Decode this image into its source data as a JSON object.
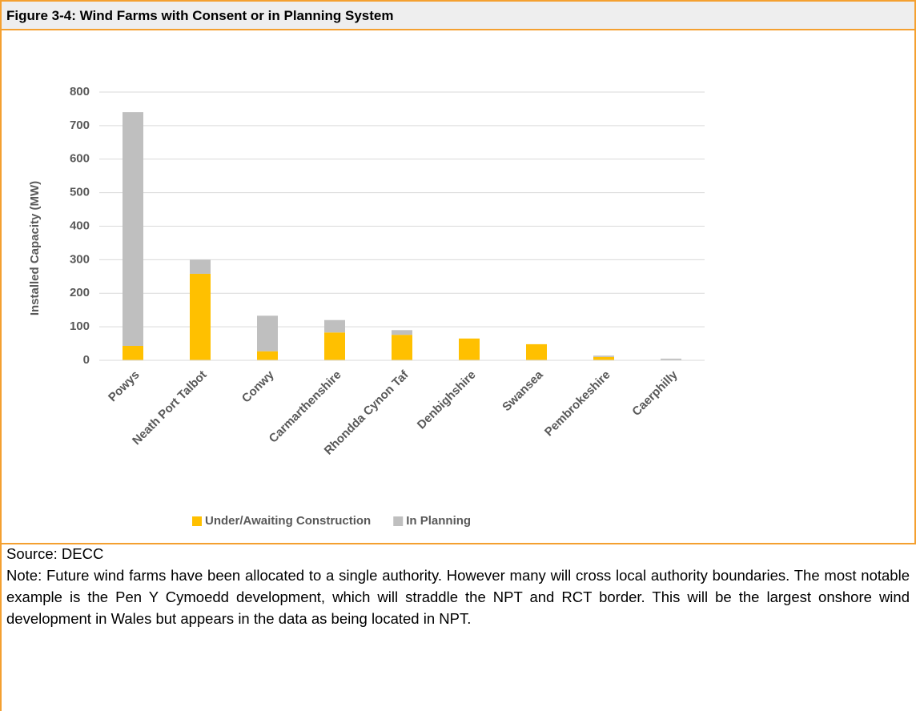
{
  "header": {
    "title": "Figure 3-4: Wind Farms with Consent or in Planning System"
  },
  "chart_data": {
    "type": "stacked_bar",
    "y_label": "Installed Capacity (MW)",
    "categories": [
      "Powys",
      "Neath Port Talbot",
      "Conwy",
      "Carmarthenshire",
      "Rhondda Cynon Taf",
      "Denbighshire",
      "Swansea",
      "Pembrokeshire",
      "Caerphilly"
    ],
    "series": [
      {
        "name": "Under/Awaiting Construction",
        "color": "#FFC000",
        "values": [
          43,
          258,
          27,
          83,
          76,
          65,
          48,
          10,
          0
        ]
      },
      {
        "name": "In Planning",
        "color": "#BFBFBF",
        "values": [
          697,
          42,
          106,
          37,
          14,
          0,
          0,
          4,
          5
        ]
      }
    ],
    "ylim": [
      0,
      800
    ],
    "yticks": [
      0,
      100,
      200,
      300,
      400,
      500,
      600,
      700,
      800
    ],
    "grid": true,
    "legend": "bottom"
  },
  "footer": {
    "source": "Source: DECC",
    "note": "Note: Future wind farms have been allocated to a single authority.  However many will cross local authority boundaries.  The most notable example is the Pen Y Cymoedd development, which will straddle the NPT and RCT border.  This will be the largest onshore wind development in Wales but appears in the data as being located in NPT."
  }
}
